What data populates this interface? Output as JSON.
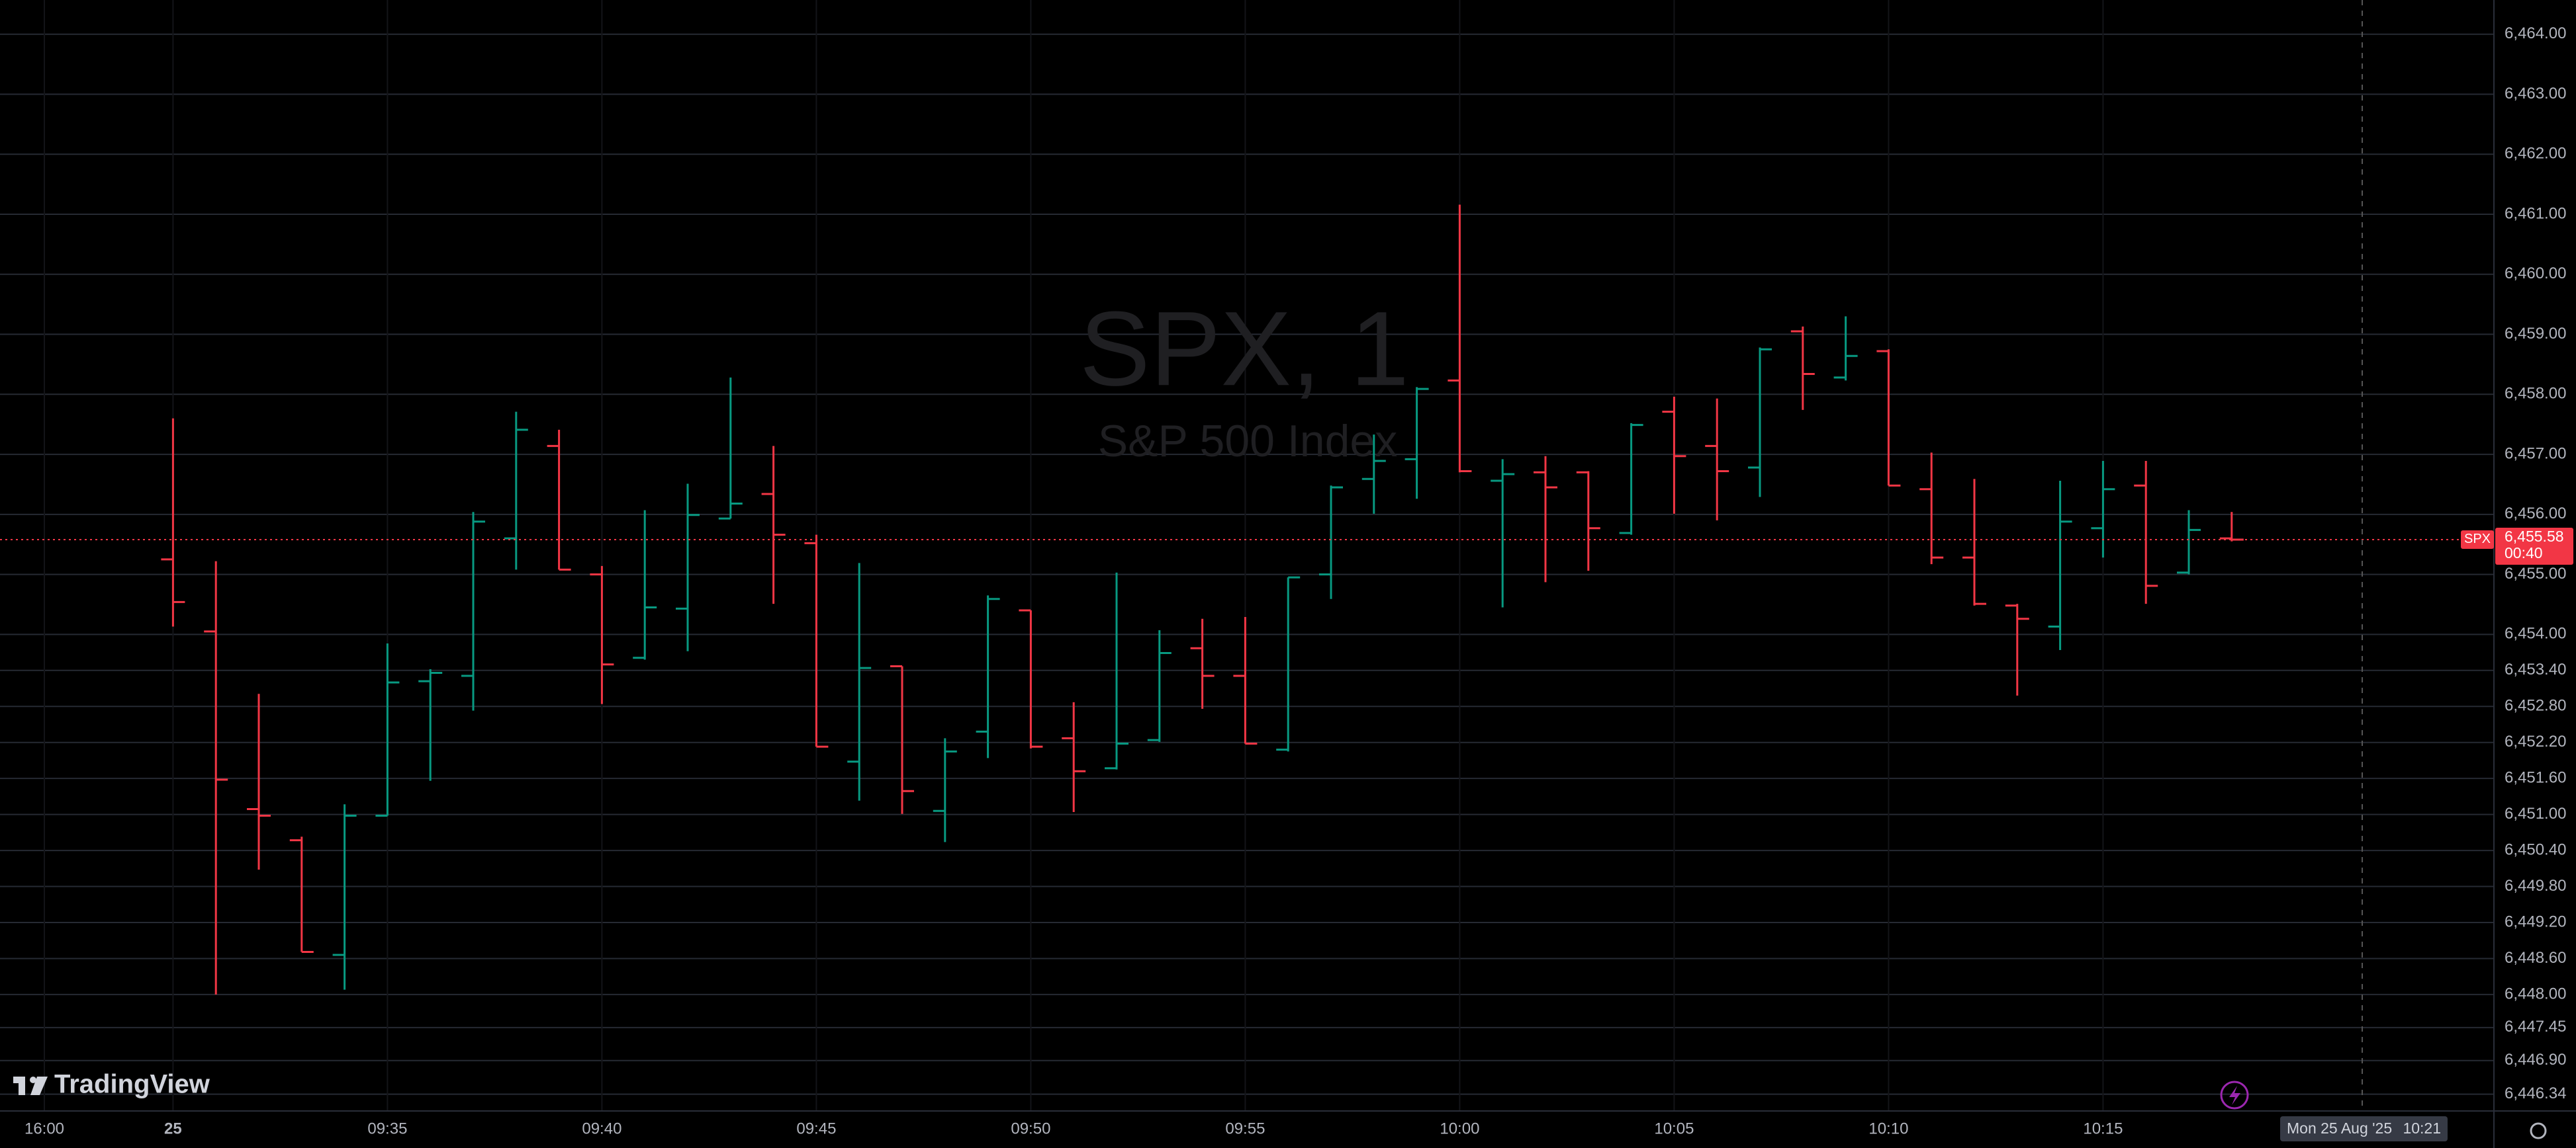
{
  "chart_data": {
    "type": "ohlc",
    "watermark": {
      "title": "SPX, 1",
      "subtitle": "S&P 500 Index"
    },
    "logo": "TradingView",
    "symbol": "SPX",
    "countdown": "00:40",
    "crosshair_date": "Mon 25 Aug '25",
    "crosshair_time": "10:21",
    "up_color": "#089981",
    "down_color": "#f23645",
    "grid": true,
    "categories": [
      "16:00",
      null,
      null,
      "25",
      null,
      null,
      null,
      null,
      "09:35",
      null,
      null,
      null,
      null,
      "09:40",
      null,
      null,
      null,
      null,
      "09:45",
      null,
      null,
      null,
      null,
      "09:50",
      null,
      null,
      null,
      null,
      "09:55",
      null,
      null,
      null,
      null,
      "10:00",
      null,
      null,
      null,
      null,
      "10:05",
      null,
      null,
      null,
      null,
      "10:10",
      null,
      null,
      null,
      null,
      "10:15",
      null,
      null,
      null
    ],
    "open": [
      null,
      null,
      null,
      6455.25,
      6454.05,
      6451.09,
      6450.57,
      6448.66,
      6450.98,
      6453.22,
      6453.31,
      6455.6,
      6457.14,
      6455.0,
      6453.61,
      6454.43,
      6455.93,
      6456.34,
      6455.52,
      6451.88,
      6453.47,
      6451.06,
      6452.38,
      6454.4,
      6452.27,
      6451.77,
      6452.24,
      6453.77,
      6453.31,
      6452.08,
      6455.0,
      6456.59,
      6456.92,
      6458.23,
      6456.56,
      6456.7,
      6456.7,
      6455.69,
      6457.71,
      6457.14,
      6456.78,
      6459.05,
      6458.28,
      6458.72,
      6456.42,
      6455.28,
      6454.48,
      6454.13,
      6455.77,
      6456.48,
      6455.03,
      6455.6
    ],
    "high": [
      null,
      null,
      null,
      6457.6,
      6455.22,
      6453.01,
      6450.63,
      6451.17,
      6453.85,
      6453.42,
      6456.04,
      6457.71,
      6457.41,
      6455.14,
      6456.07,
      6456.51,
      6458.28,
      6457.14,
      6455.66,
      6455.19,
      6453.47,
      6452.27,
      6454.65,
      6454.4,
      6452.87,
      6455.03,
      6454.07,
      6454.26,
      6454.29,
      6454.95,
      6456.48,
      6457.33,
      6458.12,
      6461.16,
      6456.92,
      6456.97,
      6456.72,
      6457.52,
      6457.96,
      6457.93,
      6458.78,
      6459.13,
      6459.3,
      6458.75,
      6457.03,
      6456.59,
      6454.51,
      6456.56,
      6456.89,
      6456.89,
      6456.07,
      6456.04
    ],
    "low": [
      null,
      null,
      null,
      6454.13,
      6448.0,
      6450.08,
      6448.71,
      6448.08,
      6450.98,
      6451.56,
      6452.73,
      6455.08,
      6455.08,
      6452.84,
      6453.58,
      6453.72,
      6455.93,
      6454.51,
      6452.13,
      6451.23,
      6451.01,
      6450.54,
      6451.94,
      6452.1,
      6451.04,
      6451.75,
      6452.21,
      6452.76,
      6452.18,
      6452.05,
      6454.59,
      6456.01,
      6456.26,
      6456.7,
      6454.45,
      6454.87,
      6455.06,
      6455.66,
      6456.01,
      6455.9,
      6456.29,
      6457.74,
      6458.23,
      6456.48,
      6455.17,
      6454.48,
      6452.98,
      6453.74,
      6455.28,
      6454.51,
      6455.0,
      6455.55
    ],
    "close": [
      null,
      null,
      null,
      6454.54,
      6451.58,
      6450.98,
      6448.71,
      6450.98,
      6453.2,
      6453.36,
      6455.88,
      6457.41,
      6455.08,
      6453.5,
      6454.45,
      6455.99,
      6456.18,
      6455.66,
      6452.13,
      6453.44,
      6451.39,
      6452.05,
      6454.59,
      6452.13,
      6451.72,
      6452.18,
      6453.69,
      6453.31,
      6452.18,
      6454.95,
      6456.45,
      6456.89,
      6458.09,
      6456.72,
      6456.67,
      6456.45,
      6455.77,
      6457.49,
      6456.97,
      6456.72,
      6458.75,
      6458.34,
      6458.64,
      6456.48,
      6455.28,
      6454.51,
      6454.26,
      6455.88,
      6456.42,
      6454.81,
      6455.74,
      6455.58
    ],
    "last_price": {
      "value": 6455.58,
      "label": "6,455.58"
    },
    "ylim": [
      6446.06,
      6464.57
    ],
    "yticks": [
      {
        "value": 6464.0,
        "label": "6,464.00"
      },
      {
        "value": 6463.0,
        "label": "6,463.00"
      },
      {
        "value": 6462.0,
        "label": "6,462.00"
      },
      {
        "value": 6461.0,
        "label": "6,461.00"
      },
      {
        "value": 6460.0,
        "label": "6,460.00"
      },
      {
        "value": 6459.0,
        "label": "6,459.00"
      },
      {
        "value": 6458.0,
        "label": "6,458.00"
      },
      {
        "value": 6457.0,
        "label": "6,457.00"
      },
      {
        "value": 6456.0,
        "label": "6,456.00"
      },
      {
        "value": 6455.0,
        "label": "6,455.00"
      },
      {
        "value": 6454.0,
        "label": "6,454.00"
      },
      {
        "value": 6453.4,
        "label": "6,453.40"
      },
      {
        "value": 6452.8,
        "label": "6,452.80"
      },
      {
        "value": 6452.2,
        "label": "6,452.20"
      },
      {
        "value": 6451.6,
        "label": "6,451.60"
      },
      {
        "value": 6451.0,
        "label": "6,451.00"
      },
      {
        "value": 6450.4,
        "label": "6,450.40"
      },
      {
        "value": 6449.8,
        "label": "6,449.80"
      },
      {
        "value": 6449.2,
        "label": "6,449.20"
      },
      {
        "value": 6448.6,
        "label": "6,448.60"
      },
      {
        "value": 6448.0,
        "label": "6,448.00"
      },
      {
        "value": 6447.45,
        "label": "6,447.45"
      },
      {
        "value": 6446.9,
        "label": "6,446.90"
      },
      {
        "value": 6446.34,
        "label": "6,446.34"
      }
    ]
  }
}
